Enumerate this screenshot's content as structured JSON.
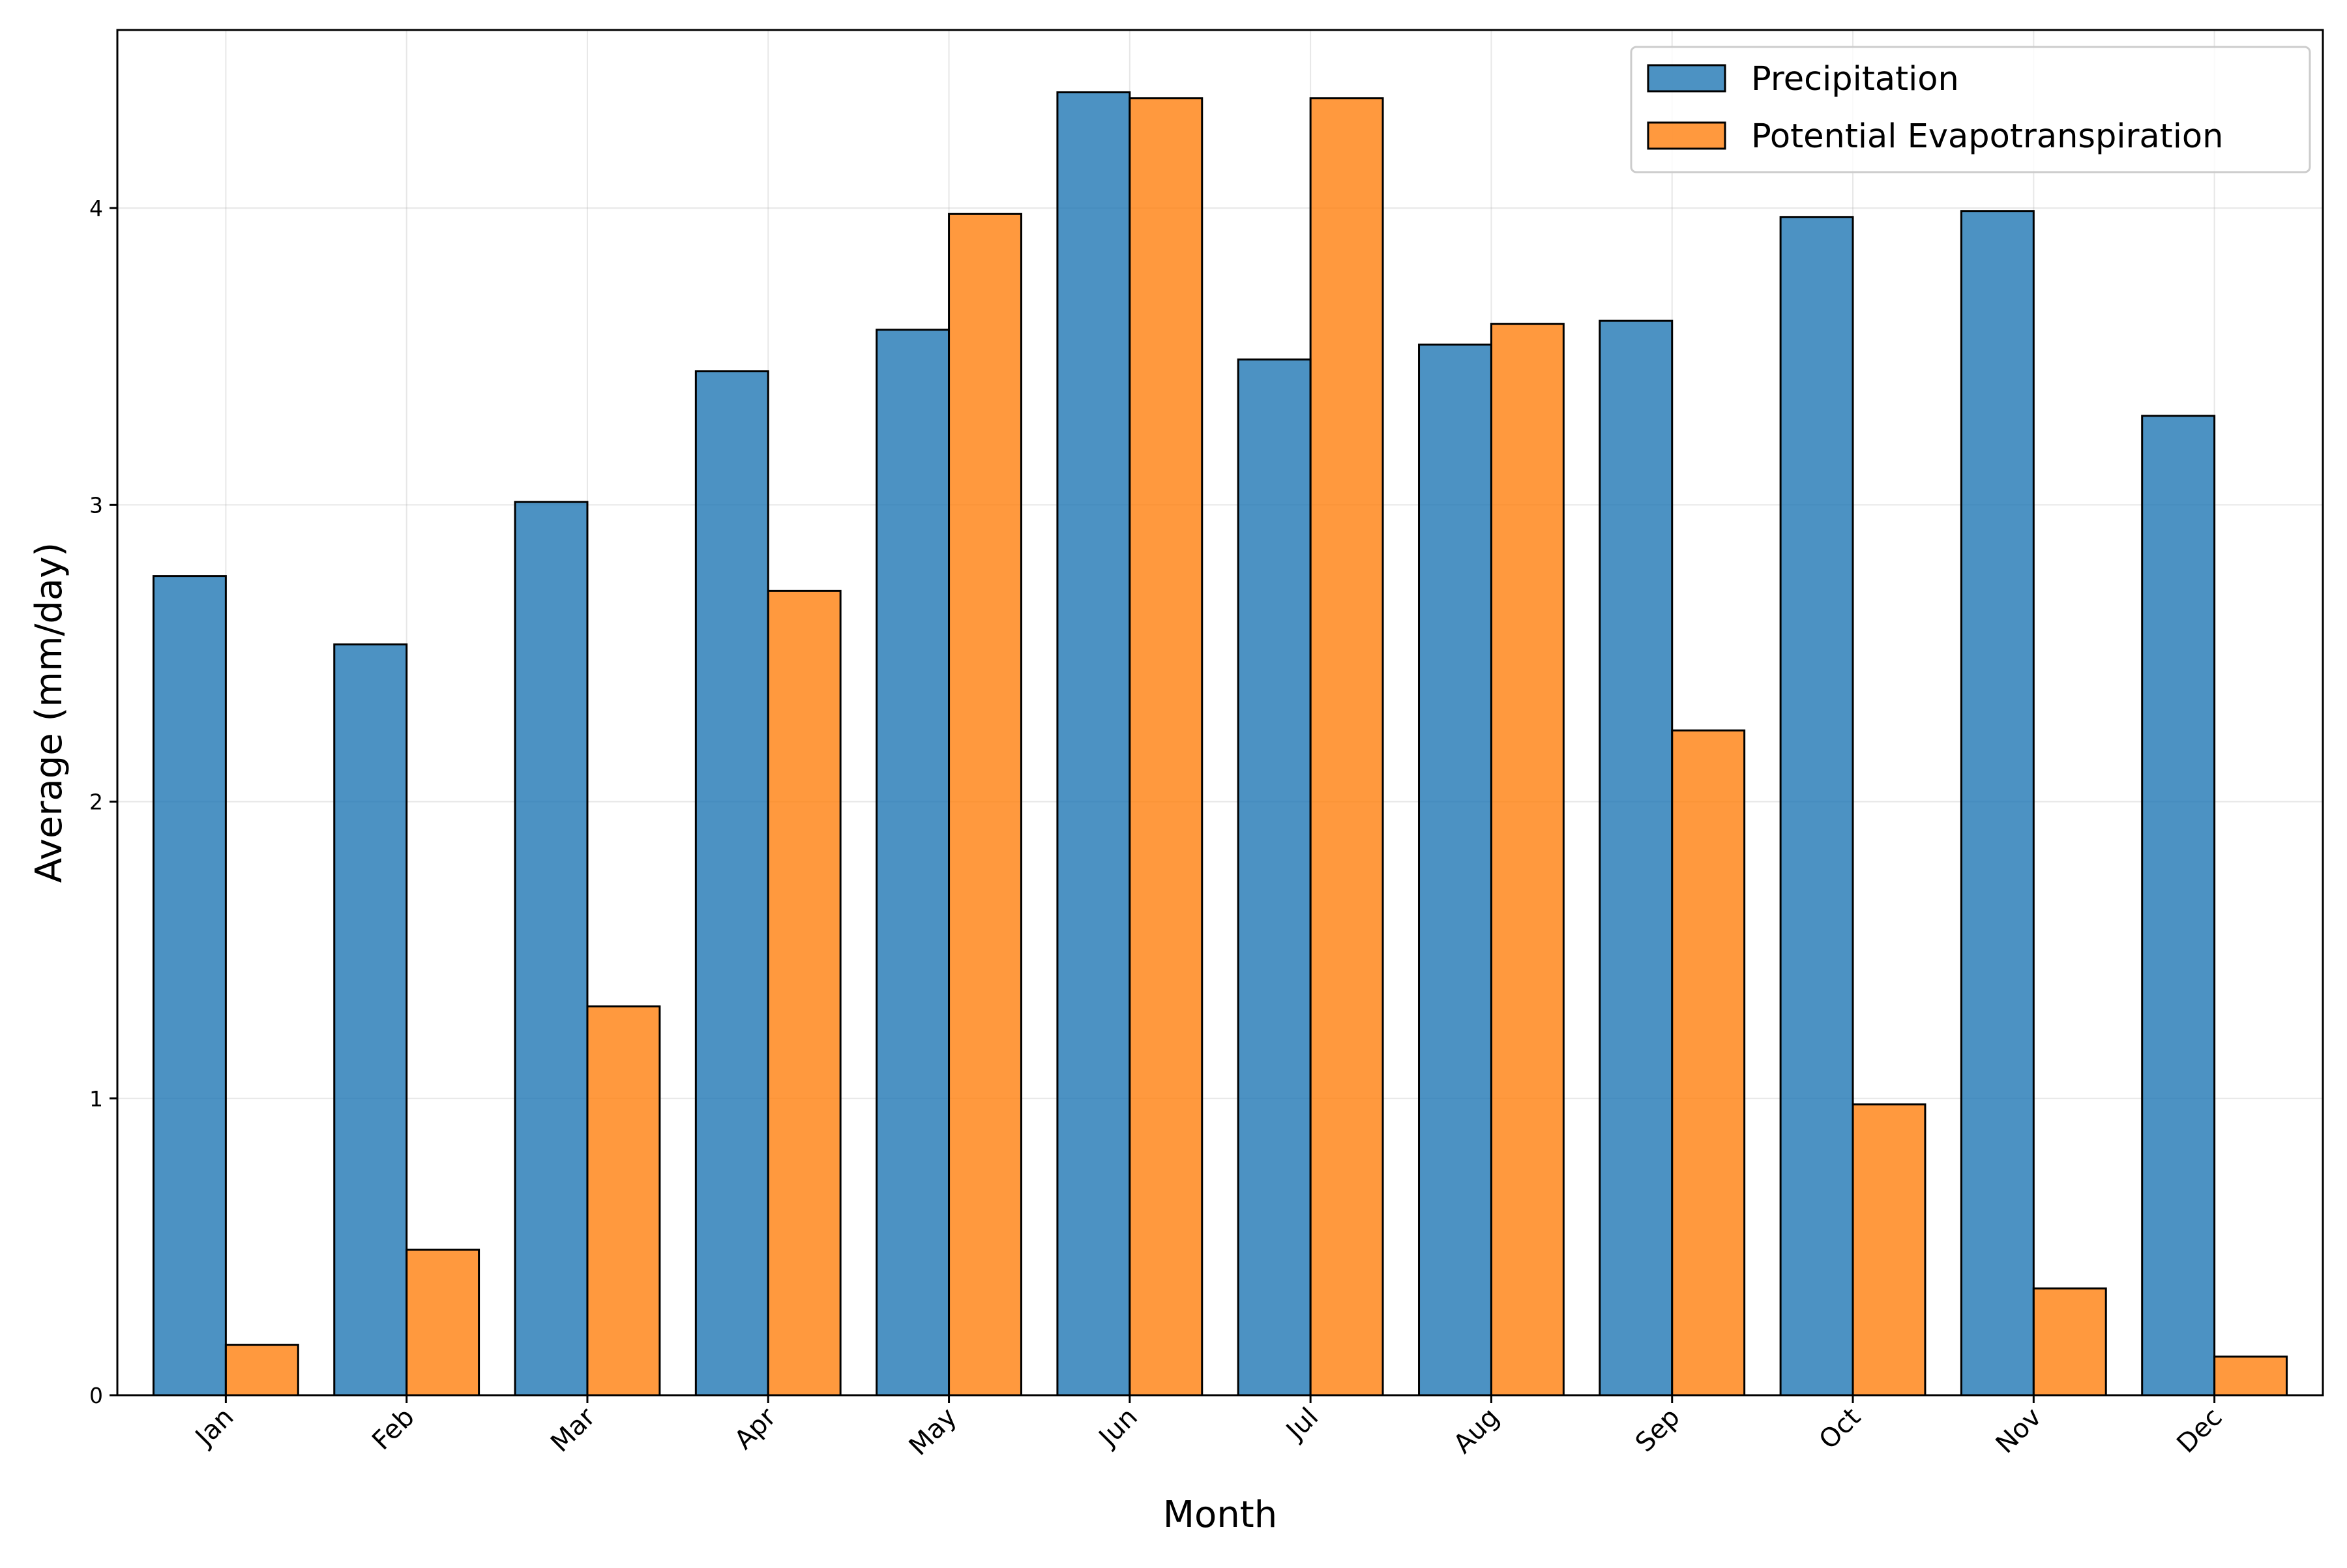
{
  "chart_data": {
    "type": "bar",
    "title": "",
    "xlabel": "Month",
    "ylabel": "Average (mm/day)",
    "categories": [
      "Jan",
      "Feb",
      "Mar",
      "Apr",
      "May",
      "Jun",
      "Jul",
      "Aug",
      "Sep",
      "Oct",
      "Nov",
      "Dec"
    ],
    "series": [
      {
        "name": "Precipitation",
        "color": "#1f77b4",
        "values": [
          2.76,
          2.53,
          3.01,
          3.45,
          3.59,
          4.39,
          3.49,
          3.54,
          3.62,
          3.97,
          3.99,
          3.3
        ]
      },
      {
        "name": "Potential Evapotranspiration",
        "color": "#ff7f0e",
        "values": [
          0.17,
          0.49,
          1.31,
          2.71,
          3.98,
          4.37,
          4.37,
          3.61,
          2.24,
          0.98,
          0.36,
          0.13
        ]
      }
    ],
    "ylim": [
      0,
      4.6
    ],
    "yticks": [
      0,
      1,
      2,
      3,
      4
    ],
    "ytick_labels": [
      "0",
      "1",
      "2",
      "3",
      "4"
    ],
    "grid": true,
    "legend_position": "upper right",
    "bar_edge_color": "#000000",
    "bar_opacity": 0.8
  }
}
